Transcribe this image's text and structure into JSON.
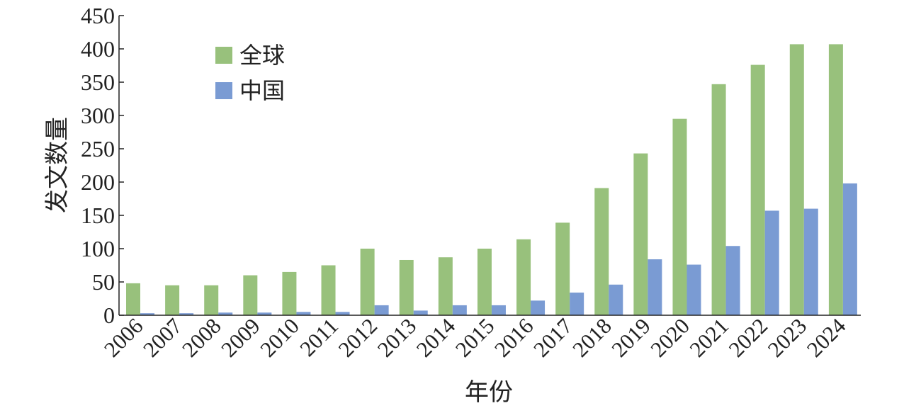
{
  "chart_data": {
    "type": "bar",
    "x_label": "年份",
    "y_label": "发文数量",
    "categories": [
      "2006",
      "2007",
      "2008",
      "2009",
      "2010",
      "2011",
      "2012",
      "2013",
      "2014",
      "2015",
      "2016",
      "2017",
      "2018",
      "2019",
      "2020",
      "2021",
      "2022",
      "2023",
      "2024"
    ],
    "series": [
      {
        "name": "全球",
        "color": "#98c17c",
        "values": [
          48,
          45,
          45,
          60,
          65,
          75,
          100,
          83,
          87,
          100,
          114,
          139,
          191,
          243,
          295,
          347,
          376,
          407,
          407
        ]
      },
      {
        "name": "中国",
        "color": "#7a9bd3",
        "values": [
          3,
          3,
          4,
          4,
          5,
          5,
          15,
          7,
          15,
          15,
          22,
          34,
          46,
          84,
          76,
          104,
          157,
          160,
          198
        ]
      }
    ],
    "ylim": [
      0,
      450
    ],
    "yticks": [
      0,
      50,
      100,
      150,
      200,
      250,
      300,
      350,
      400,
      450
    ]
  }
}
